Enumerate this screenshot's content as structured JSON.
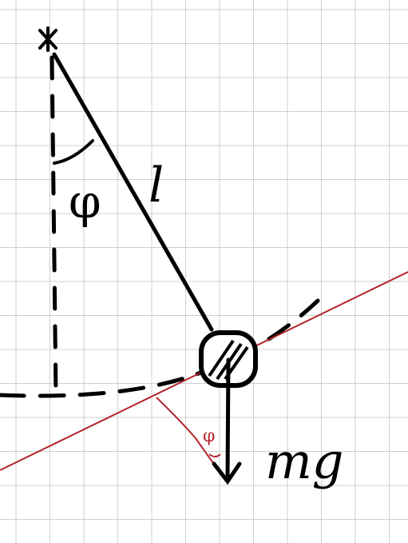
{
  "diagram": {
    "labels": {
      "angle_top": "φ",
      "length": "l",
      "angle_red": "φ",
      "force": "mg"
    },
    "colors": {
      "background": "#ffffff",
      "grid": "#cfcfcf",
      "ink": "#000000",
      "red": "#b3252c"
    }
  }
}
